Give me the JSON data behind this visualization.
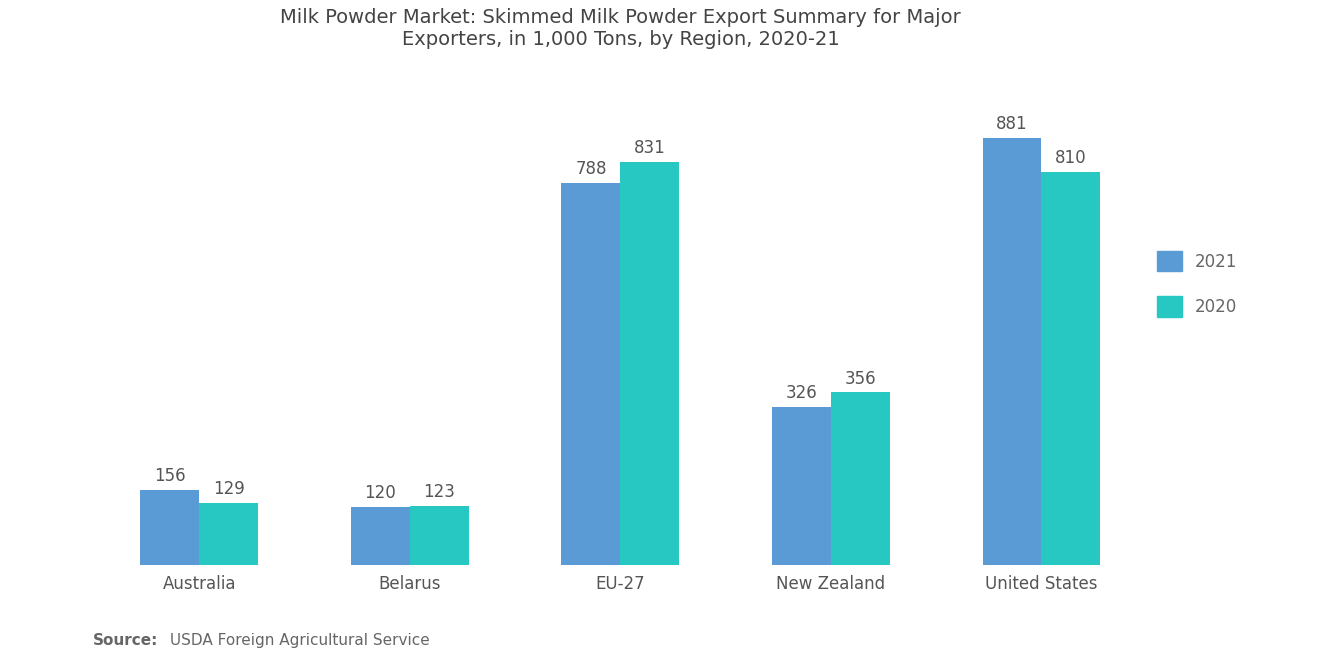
{
  "title": "Milk Powder Market: Skimmed Milk Powder Export Summary for Major\nExporters, in 1,000 Tons, by Region, 2020-21",
  "categories": [
    "Australia",
    "Belarus",
    "EU-27",
    "New Zealand",
    "United States"
  ],
  "values_2021": [
    156,
    120,
    788,
    326,
    881
  ],
  "values_2020": [
    129,
    123,
    831,
    356,
    810
  ],
  "color_2021": "#5B9BD5",
  "color_2020": "#27C7C2",
  "bar_width": 0.28,
  "source_bold": "Source: ",
  "source_rest": " USDA Foreign Agricultural Service",
  "legend_labels": [
    "2021",
    "2020"
  ],
  "title_fontsize": 14,
  "label_fontsize": 12,
  "tick_fontsize": 12,
  "source_fontsize": 11,
  "background_color": "#ffffff",
  "ylim": [
    0,
    1000
  ],
  "value_color": "#555555"
}
